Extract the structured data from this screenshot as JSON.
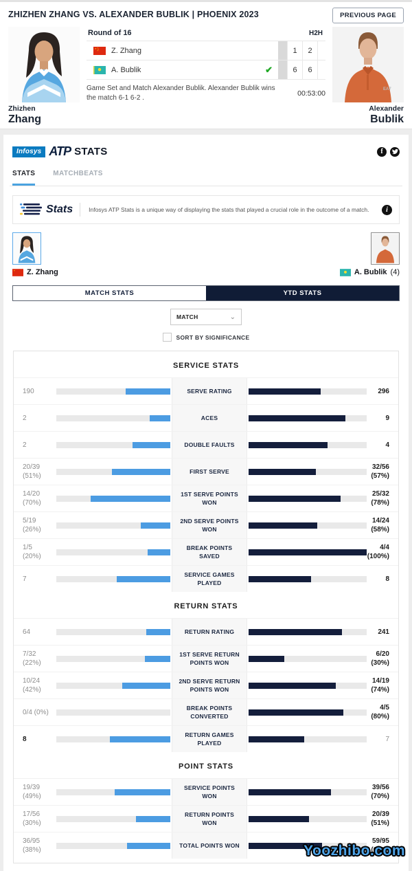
{
  "header": {
    "title": "ZHIZHEN ZHANG VS. ALEXANDER BUBLIK | PHOENIX 2023",
    "previous_page_label": "PREVIOUS PAGE",
    "left_player": {
      "first_name": "Zhizhen",
      "last_name": "Zhang"
    },
    "right_player": {
      "first_name": "Alexander",
      "last_name": "Bublik"
    },
    "scoreboard": {
      "round": "Round of 16",
      "h2h_label": "H2H",
      "players": [
        {
          "name": "Z. Zhang",
          "flag": "china",
          "winner": false,
          "sets": [
            "1",
            "2"
          ]
        },
        {
          "name": "A. Bublik",
          "flag": "kazakhstan",
          "winner": true,
          "sets": [
            "6",
            "6"
          ]
        }
      ],
      "result_text": "Game Set and Match Alexander Bublik. Alexander Bublik wins the match 6-1 6-2 .",
      "duration": "00:53:00"
    }
  },
  "stats_module": {
    "infosys_label": "Infosys",
    "atp_label": "ATP",
    "stats_label": "STATS",
    "tabs": [
      {
        "label": "STATS",
        "active": true
      },
      {
        "label": "MATCHBEATS",
        "active": false
      }
    ],
    "banner": {
      "logo_text": "Stats",
      "description": "Infosys ATP Stats is a unique way of displaying the stats that played a crucial role in the outcome of a match.",
      "info_icon": "i"
    },
    "players": {
      "left": {
        "name": "Z. Zhang",
        "flag": "china"
      },
      "right": {
        "name": "A. Bublik",
        "seed": "(4)",
        "flag": "kazakhstan"
      }
    },
    "view_toggle": {
      "match_label": "MATCH STATS",
      "ytd_label": "YTD STATS"
    },
    "filters": {
      "dropdown_value": "MATCH",
      "sort_checkbox_label": "SORT BY SIGNIFICANCE"
    }
  },
  "chart_data": {
    "type": "bar",
    "layout": "mirrored head-to-head comparison, bar length = percent of track",
    "left_player": "Z. Zhang",
    "right_player": "A. Bublik",
    "left_color": "#4c9ce2",
    "right_color": "#141e3c",
    "sections": [
      {
        "title": "SERVICE STATS",
        "rows": [
          {
            "label": "SERVE RATING",
            "left": "190",
            "right": "296",
            "left_pct": 39,
            "right_pct": 61,
            "bold": "right"
          },
          {
            "label": "ACES",
            "left": "2",
            "right": "9",
            "left_pct": 18,
            "right_pct": 82,
            "bold": "right"
          },
          {
            "label": "DOUBLE FAULTS",
            "left": "2",
            "right": "4",
            "left_pct": 33,
            "right_pct": 67,
            "bold": "right"
          },
          {
            "label": "FIRST SERVE",
            "left": "20/39\n(51%)",
            "right": "32/56\n(57%)",
            "left_pct": 51,
            "right_pct": 57,
            "bold": "right"
          },
          {
            "label": "1ST SERVE POINTS WON",
            "left": "14/20\n(70%)",
            "right": "25/32\n(78%)",
            "left_pct": 70,
            "right_pct": 78,
            "bold": "right"
          },
          {
            "label": "2ND SERVE POINTS WON",
            "left": "5/19\n(26%)",
            "right": "14/24\n(58%)",
            "left_pct": 26,
            "right_pct": 58,
            "bold": "right"
          },
          {
            "label": "BREAK POINTS SAVED",
            "left": "1/5\n(20%)",
            "right": "4/4\n(100%)",
            "left_pct": 20,
            "right_pct": 100,
            "bold": "right"
          },
          {
            "label": "SERVICE GAMES PLAYED",
            "left": "7",
            "right": "8",
            "left_pct": 47,
            "right_pct": 53,
            "bold": "right"
          }
        ]
      },
      {
        "title": "RETURN STATS",
        "rows": [
          {
            "label": "RETURN RATING",
            "left": "64",
            "right": "241",
            "left_pct": 21,
            "right_pct": 79,
            "bold": "right"
          },
          {
            "label": "1ST SERVE RETURN POINTS WON",
            "left": "7/32\n(22%)",
            "right": "6/20\n(30%)",
            "left_pct": 22,
            "right_pct": 30,
            "bold": "right"
          },
          {
            "label": "2ND SERVE RETURN POINTS WON",
            "left": "10/24\n(42%)",
            "right": "14/19\n(74%)",
            "left_pct": 42,
            "right_pct": 74,
            "bold": "right"
          },
          {
            "label": "BREAK POINTS CONVERTED",
            "left": "0/4 (0%)",
            "right": "4/5\n(80%)",
            "left_pct": 0,
            "right_pct": 80,
            "bold": "right"
          },
          {
            "label": "RETURN GAMES PLAYED",
            "left": "8",
            "right": "7",
            "left_pct": 53,
            "right_pct": 47,
            "bold": "left"
          }
        ]
      },
      {
        "title": "POINT STATS",
        "rows": [
          {
            "label": "SERVICE POINTS WON",
            "left": "19/39\n(49%)",
            "right": "39/56\n(70%)",
            "left_pct": 49,
            "right_pct": 70,
            "bold": "right"
          },
          {
            "label": "RETURN POINTS WON",
            "left": "17/56\n(30%)",
            "right": "20/39\n(51%)",
            "left_pct": 30,
            "right_pct": 51,
            "bold": "right"
          },
          {
            "label": "TOTAL POINTS WON",
            "left": "36/95\n(38%)",
            "right": "59/95\n(62%)",
            "left_pct": 38,
            "right_pct": 62,
            "bold": "right"
          }
        ]
      }
    ]
  },
  "watermark": "Yoozhibo.com",
  "colors": {
    "accent_blue": "#4c9ce2",
    "navy": "#141e3c",
    "tab_underline": "#4aa3e0",
    "infosys_blue": "#0b7bc0"
  }
}
